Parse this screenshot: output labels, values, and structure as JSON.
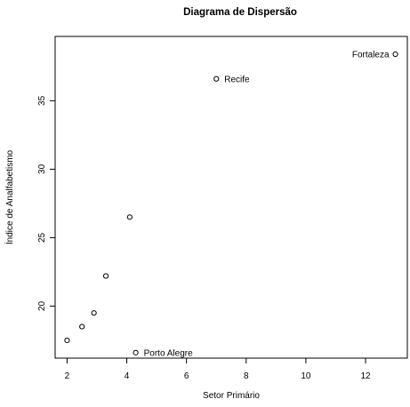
{
  "chart_data": {
    "type": "scatter",
    "title": "Diagrama de Dispersão",
    "xlabel": "Setor Primário",
    "ylabel": "Índice de Analfabetismo",
    "xlim": [
      1.6,
      13.4
    ],
    "ylim": [
      16.2,
      39.7
    ],
    "x_ticks": [
      2,
      4,
      6,
      8,
      10,
      12
    ],
    "y_ticks": [
      20,
      25,
      30,
      35
    ],
    "grid": false,
    "legend": "none",
    "points": [
      {
        "x": 2.0,
        "y": 17.5,
        "label": ""
      },
      {
        "x": 2.5,
        "y": 18.5,
        "label": ""
      },
      {
        "x": 2.9,
        "y": 19.5,
        "label": ""
      },
      {
        "x": 3.3,
        "y": 22.2,
        "label": ""
      },
      {
        "x": 4.1,
        "y": 26.5,
        "label": ""
      },
      {
        "x": 4.3,
        "y": 16.6,
        "label": "Porto Alegre"
      },
      {
        "x": 7.0,
        "y": 36.6,
        "label": "Recife"
      },
      {
        "x": 13.0,
        "y": 38.4,
        "label": "Fortaleza"
      }
    ]
  }
}
